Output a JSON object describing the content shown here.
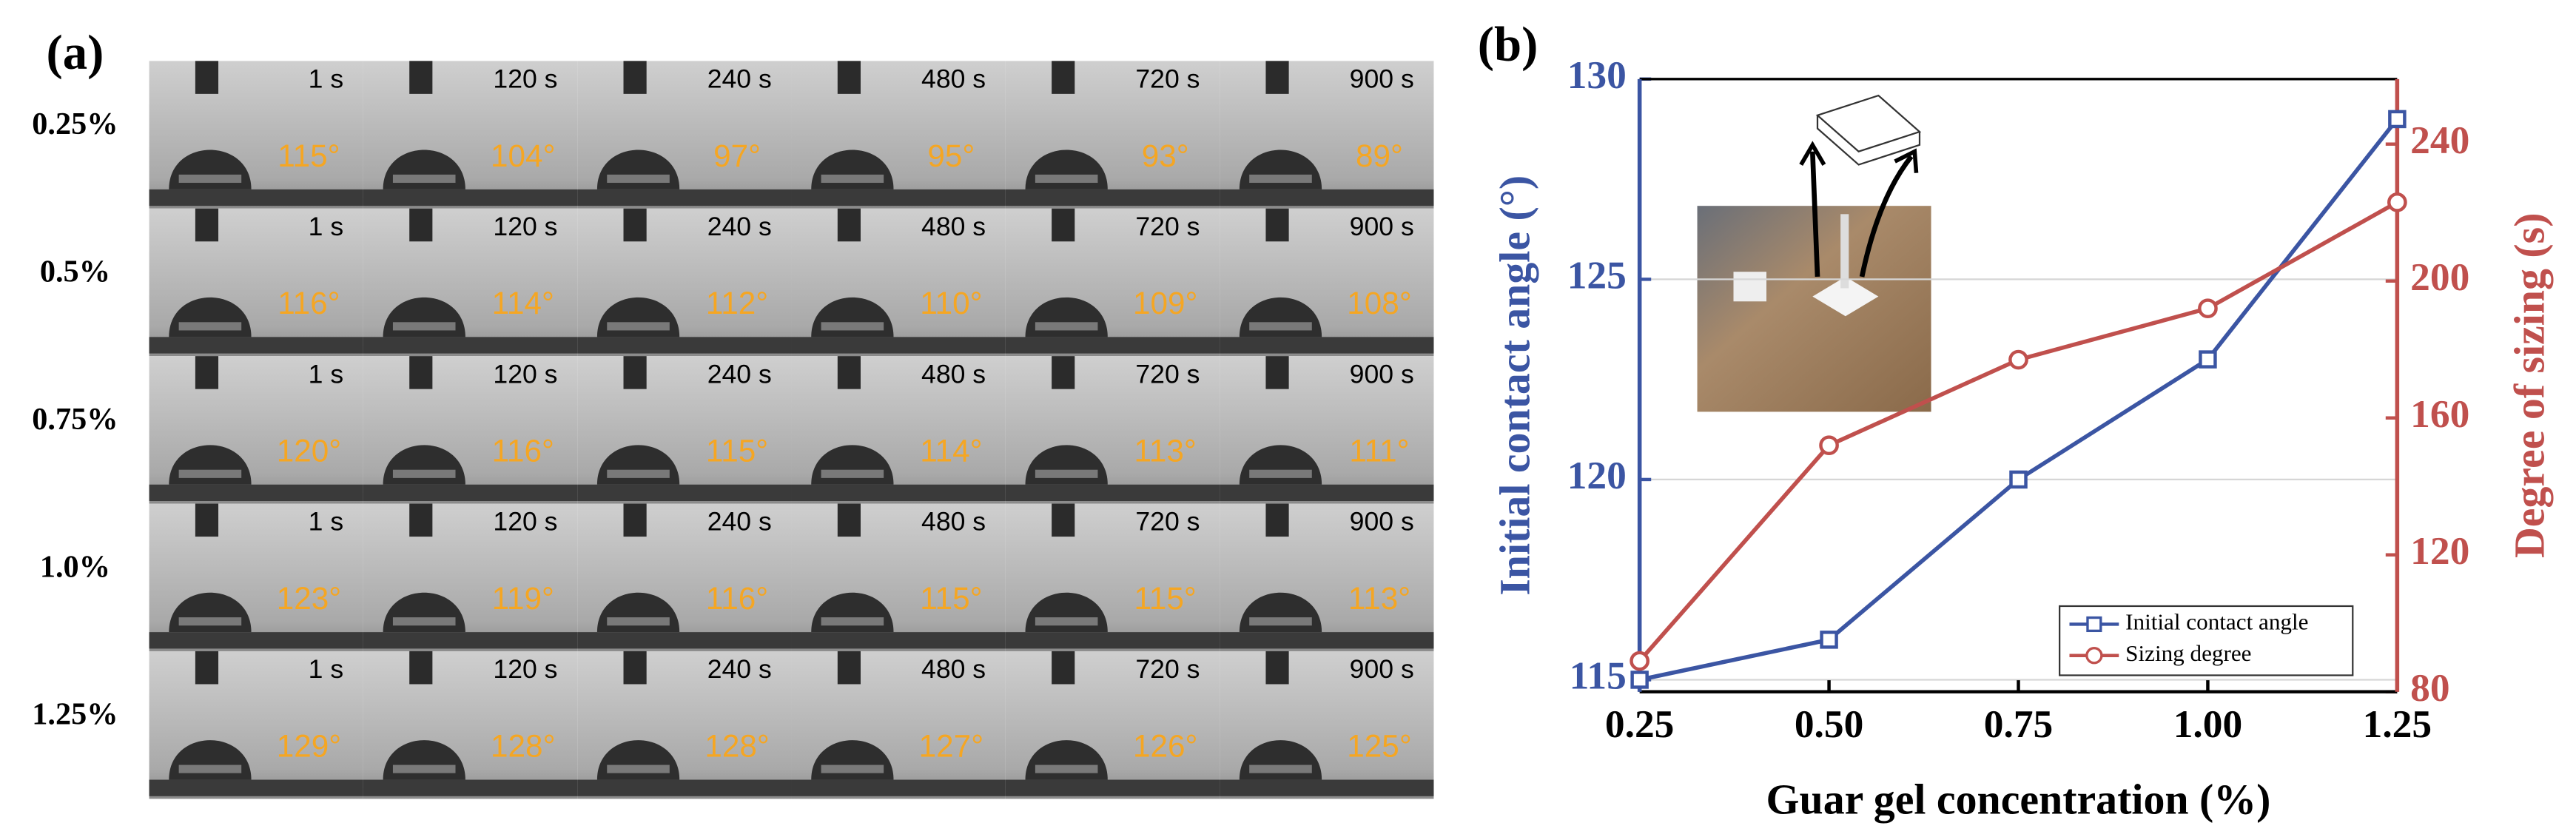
{
  "panel_a": {
    "label": "(a)",
    "times": [
      "1 s",
      "120 s",
      "240 s",
      "480 s",
      "720 s",
      "900 s"
    ],
    "rows": [
      {
        "label": "0.25%",
        "angles": [
          "115°",
          "104°",
          "97°",
          "95°",
          "93°",
          "89°"
        ]
      },
      {
        "label": "0.5%",
        "angles": [
          "116°",
          "114°",
          "112°",
          "110°",
          "109°",
          "108°"
        ]
      },
      {
        "label": "0.75%",
        "angles": [
          "120°",
          "116°",
          "115°",
          "114°",
          "113°",
          "111°"
        ]
      },
      {
        "label": "1.0%",
        "angles": [
          "123°",
          "119°",
          "116°",
          "115°",
          "115°",
          "113°"
        ]
      },
      {
        "label": "1.25%",
        "angles": [
          "129°",
          "128°",
          "128°",
          "127°",
          "126°",
          "125°"
        ]
      }
    ]
  },
  "chart_data": {
    "type": "line",
    "panel_label": "(b)",
    "x_label": "Guar gel concentration (%)",
    "y_label": "Initial contact angle (°)",
    "y2_label": "Degree of sizing (s)",
    "x": [
      0.25,
      0.5,
      0.75,
      1.0,
      1.25
    ],
    "xlim": [
      0.25,
      1.25
    ],
    "xticks": [
      {
        "value": 0.25,
        "label": "0.25"
      },
      {
        "value": 0.5,
        "label": "0.50"
      },
      0.75,
      {
        "value": 1.0,
        "label": "1.00"
      },
      1.25
    ],
    "ylim": [
      114.7,
      130
    ],
    "yticks": [
      115,
      120,
      125,
      130
    ],
    "y2lim": [
      80,
      259
    ],
    "y2ticks": [
      80,
      120,
      160,
      200,
      240
    ],
    "grid": true,
    "legend": "lower right",
    "series": [
      {
        "name": "Initial contact angle",
        "color": "#3b55a3",
        "marker": "square",
        "values": [
          115,
          116,
          120,
          123,
          129
        ]
      },
      {
        "name": "Sizing degree",
        "color": "#c0504d",
        "marker": "circle",
        "axis": "y2",
        "values": [
          89,
          152,
          177,
          192,
          223
        ]
      }
    ]
  }
}
